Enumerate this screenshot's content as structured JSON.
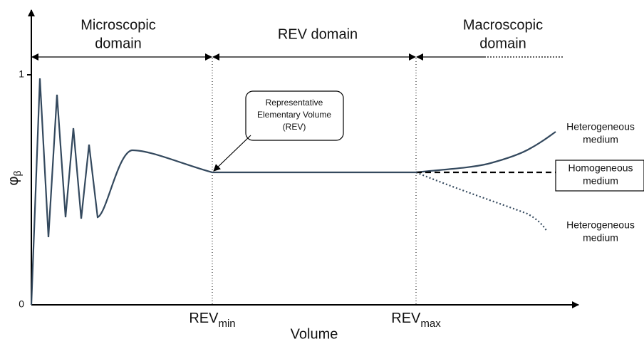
{
  "axes": {
    "y_label": {
      "base": "φ",
      "sub": "β"
    },
    "y_ticks": [
      "1",
      "0"
    ],
    "x_label": "Volume",
    "x_marks": [
      {
        "base": "REV",
        "sub": "min"
      },
      {
        "base": "REV",
        "sub": "max"
      }
    ]
  },
  "domains": [
    {
      "lines": [
        "Microscopic",
        "domain"
      ]
    },
    {
      "lines": [
        "REV domain"
      ]
    },
    {
      "lines": [
        "Macroscopic",
        "domain"
      ]
    }
  ],
  "callout": {
    "lines": [
      "Representative",
      "Elementary Volume",
      "(REV)"
    ]
  },
  "curves": [
    {
      "lines": [
        "Heterogeneous",
        "medium"
      ]
    },
    {
      "lines": [
        "Homogeneous",
        "medium"
      ]
    },
    {
      "lines": [
        "Heterogeneous",
        "medium"
      ]
    }
  ]
}
